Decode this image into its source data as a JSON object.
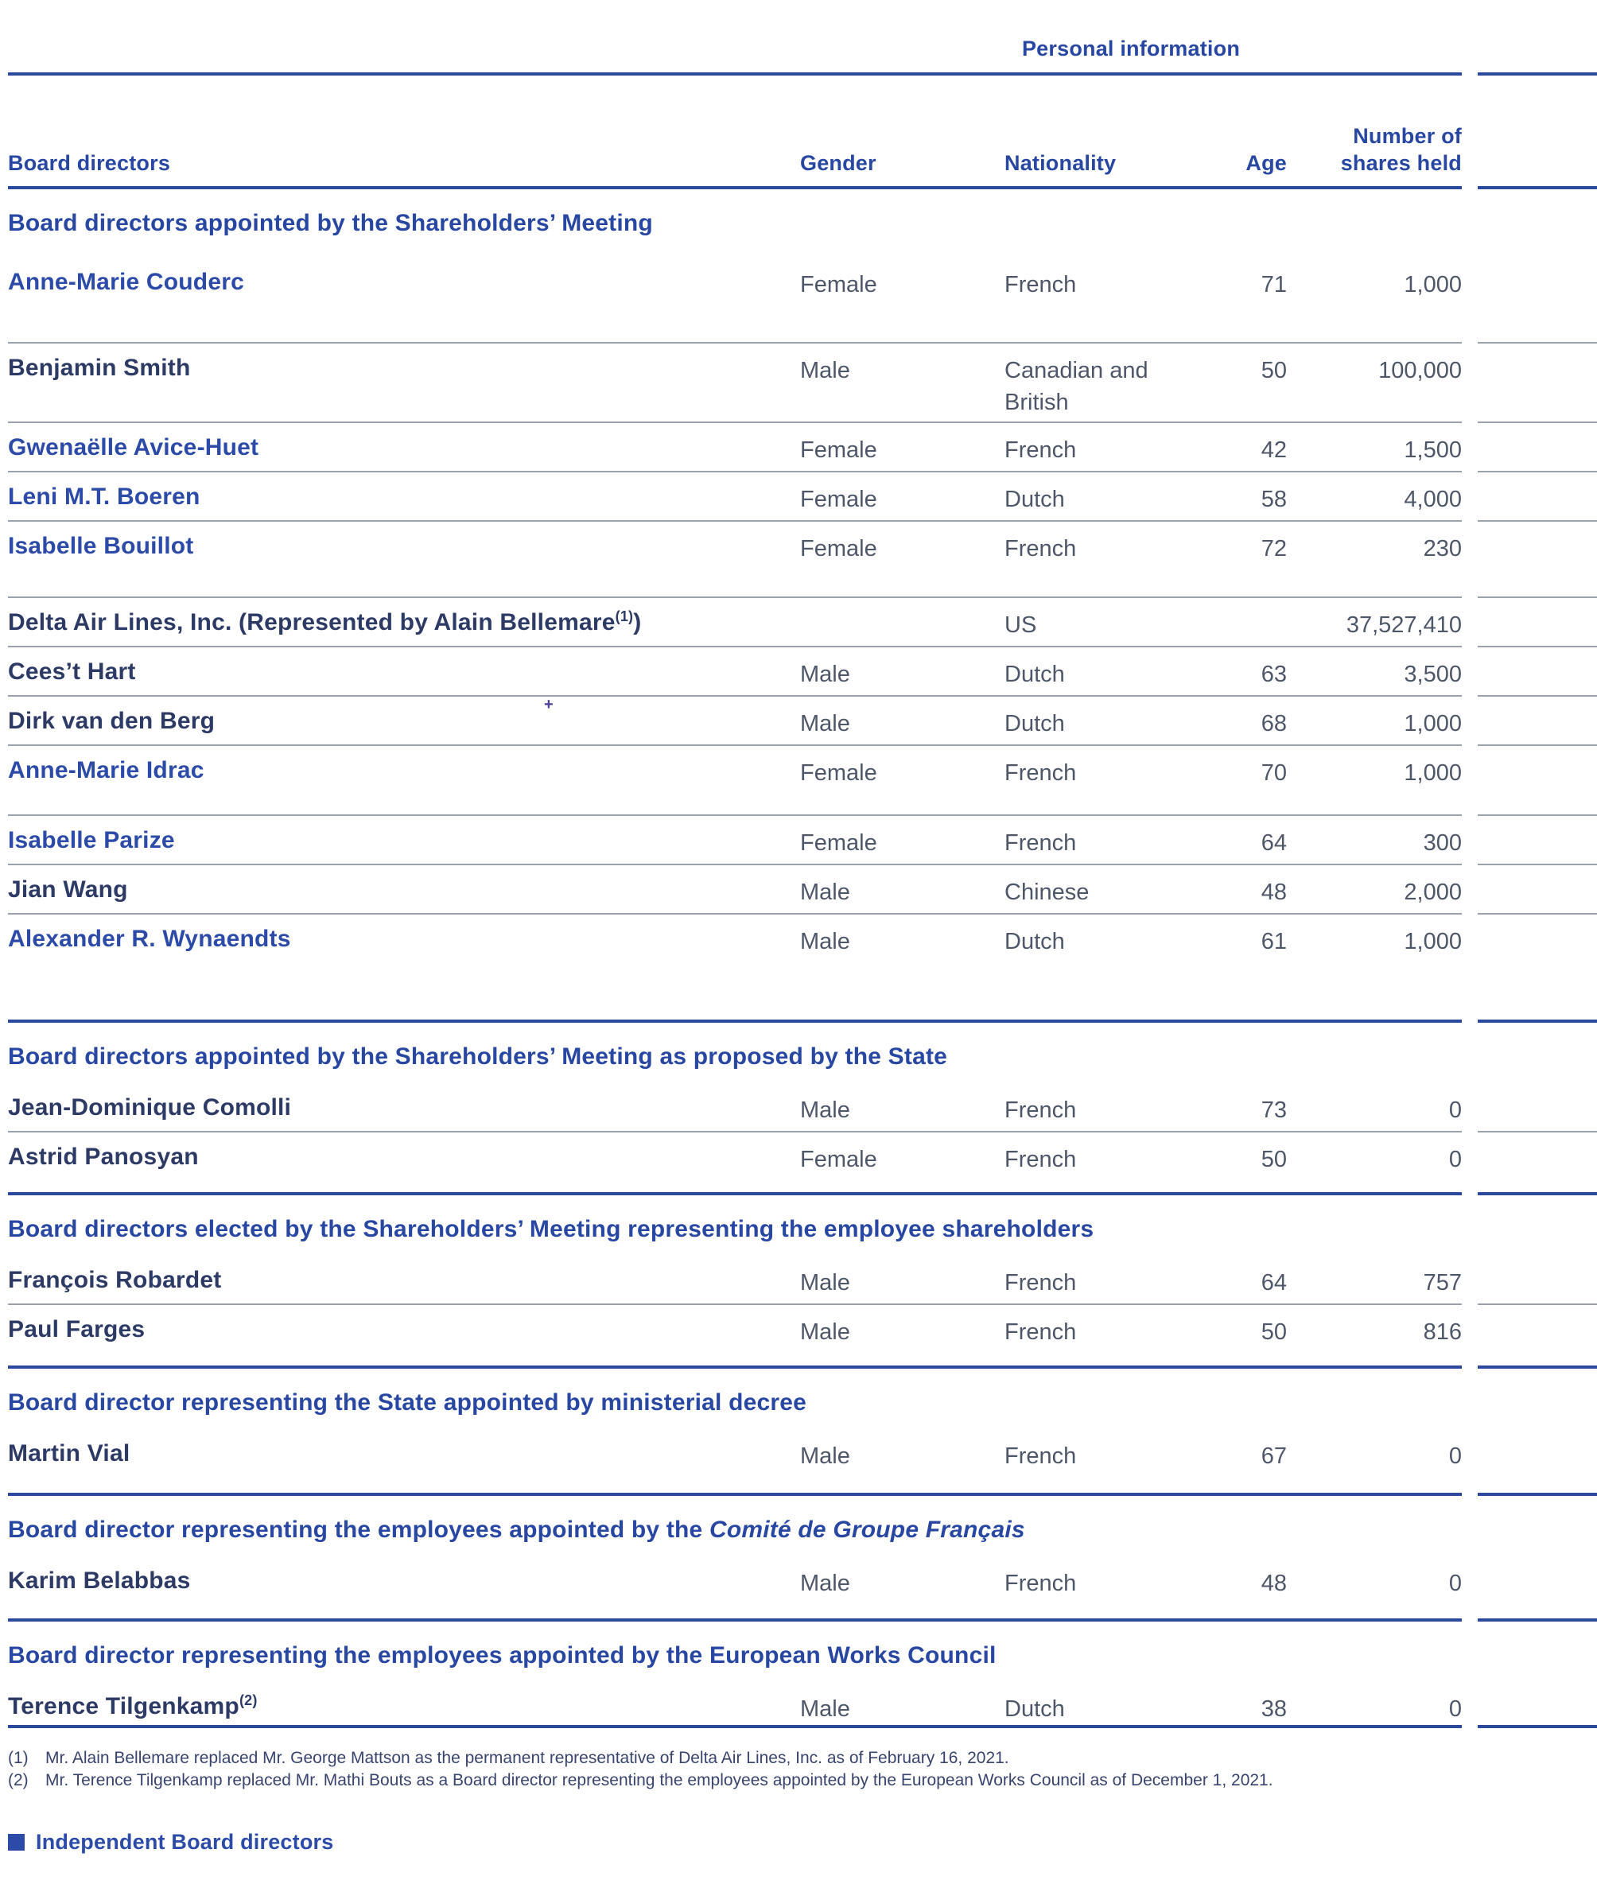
{
  "table": {
    "group_header": "Personal information",
    "columns": {
      "name": "Board directors",
      "gender": "Gender",
      "nationality": "Nationality",
      "age": "Age",
      "shares_l1": "Number of",
      "shares_l2": "shares held"
    },
    "sections": [
      {
        "heading": "Board directors appointed by the Shareholders’ Meeting",
        "rows": [
          {
            "name": "Anne-Marie Couderc",
            "independent": true,
            "gender": "Female",
            "nationality": "French",
            "age": "71",
            "shares": "1,000"
          },
          {
            "name": "Benjamin Smith",
            "independent": false,
            "gender": "Male",
            "nationality": "Canadian and British",
            "age": "50",
            "shares": "100,000"
          },
          {
            "name": "Gwenaëlle Avice-Huet",
            "independent": true,
            "gender": "Female",
            "nationality": "French",
            "age": "42",
            "shares": "1,500"
          },
          {
            "name": "Leni M.T. Boeren",
            "independent": true,
            "gender": "Female",
            "nationality": "Dutch",
            "age": "58",
            "shares": "4,000"
          },
          {
            "name": "Isabelle Bouillot",
            "independent": true,
            "gender": "Female",
            "nationality": "French",
            "age": "72",
            "shares": "230"
          },
          {
            "name_pre": "Delta Air Lines, Inc. (Represented by Alain Bellemare",
            "name_sup": "(1)",
            "name_post": ")",
            "independent": false,
            "gender": "",
            "nationality": "US",
            "age": "",
            "shares": "37,527,410"
          },
          {
            "name": "Cees’t Hart",
            "independent": false,
            "gender": "Male",
            "nationality": "Dutch",
            "age": "63",
            "shares": "3,500"
          },
          {
            "name": "Dirk van den Berg",
            "independent": false,
            "gender": "Male",
            "nationality": "Dutch",
            "age": "68",
            "shares": "1,000",
            "stray_mark": "+"
          },
          {
            "name": "Anne-Marie Idrac",
            "independent": true,
            "gender": "Female",
            "nationality": "French",
            "age": "70",
            "shares": "1,000"
          },
          {
            "name": "Isabelle Parize",
            "independent": true,
            "gender": "Female",
            "nationality": "French",
            "age": "64",
            "shares": "300"
          },
          {
            "name": "Jian Wang",
            "independent": false,
            "gender": "Male",
            "nationality": "Chinese",
            "age": "48",
            "shares": "2,000"
          },
          {
            "name": "Alexander R. Wynaendts",
            "independent": true,
            "gender": "Male",
            "nationality": "Dutch",
            "age": "61",
            "shares": "1,000"
          }
        ]
      },
      {
        "heading": "Board directors appointed by the Shareholders’ Meeting as proposed by the State",
        "rows": [
          {
            "name": "Jean-Dominique Comolli",
            "independent": false,
            "gender": "Male",
            "nationality": "French",
            "age": "73",
            "shares": "0"
          },
          {
            "name": "Astrid Panosyan",
            "independent": false,
            "gender": "Female",
            "nationality": "French",
            "age": "50",
            "shares": "0"
          }
        ]
      },
      {
        "heading": "Board directors elected by the Shareholders’ Meeting representing the employee shareholders",
        "rows": [
          {
            "name": "François Robardet",
            "independent": false,
            "gender": "Male",
            "nationality": "French",
            "age": "64",
            "shares": "757"
          },
          {
            "name": "Paul Farges",
            "independent": false,
            "gender": "Male",
            "nationality": "French",
            "age": "50",
            "shares": "816"
          }
        ]
      },
      {
        "heading": "Board director representing the State appointed by ministerial decree",
        "rows": [
          {
            "name": "Martin Vial",
            "independent": false,
            "gender": "Male",
            "nationality": "French",
            "age": "67",
            "shares": "0"
          }
        ]
      },
      {
        "heading_pre": "Board director representing the employees appointed by the ",
        "heading_italic": "Comité de Groupe Français",
        "rows": [
          {
            "name": "Karim Belabbas",
            "independent": false,
            "gender": "Male",
            "nationality": "French",
            "age": "48",
            "shares": "0"
          }
        ]
      },
      {
        "heading": "Board director representing the employees appointed by the European Works Council",
        "rows": [
          {
            "name_pre": "Terence Tilgenkamp",
            "name_sup": "(2)",
            "name_post": "",
            "independent": false,
            "gender": "Male",
            "nationality": "Dutch",
            "age": "38",
            "shares": "0"
          }
        ]
      }
    ]
  },
  "footnotes": [
    {
      "marker": "(1)",
      "text": "Mr. Alain Bellemare replaced Mr. George Mattson as the permanent representative of Delta Air Lines, Inc. as of February 16, 2021."
    },
    {
      "marker": "(2)",
      "text": "Mr. Terence Tilgenkamp replaced Mr. Mathi Bouts as a Board director representing the employees appointed by the European Works Council as of December 1, 2021."
    }
  ],
  "legend": {
    "label": "Independent Board directors"
  },
  "colors": {
    "accent_blue": "#2847a2",
    "independent_name_blue": "#2c4aa8",
    "regular_name_navy": "#2d3a66",
    "cell_text": "#4e5769",
    "separator_gray": "#9aa1ab",
    "rule_blue": "#2b4a9f"
  }
}
